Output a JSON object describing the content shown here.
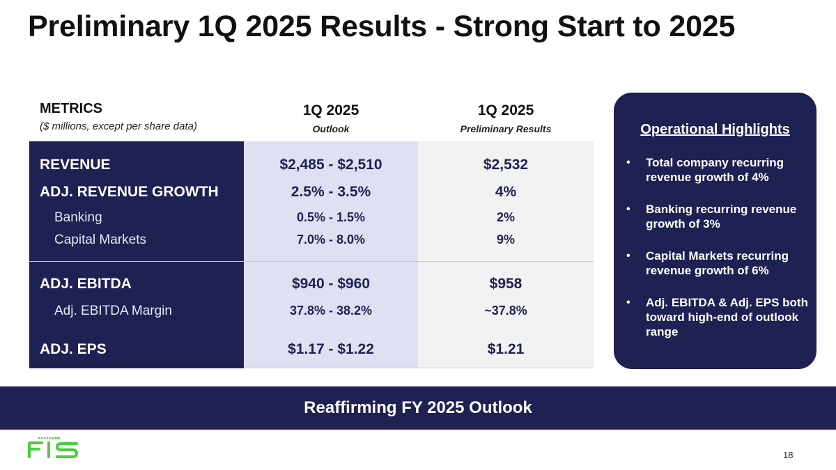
{
  "title": "Preliminary 1Q 2025 Results - Strong Start to 2025",
  "table": {
    "header": {
      "metrics": "METRICS",
      "metrics_sub": "($ millions, except per share data)",
      "col1_title": "1Q 2025",
      "col1_sub": "Outlook",
      "col2_title": "1Q 2025",
      "col2_sub": "Preliminary Results"
    },
    "rows": [
      {
        "label": "REVENUE",
        "outlook": "$2,485 - $2,510",
        "result": "$2,532"
      },
      {
        "label": "ADJ. REVENUE GROWTH",
        "outlook": "2.5% - 3.5%",
        "result": "4%"
      },
      {
        "label": "Banking",
        "outlook": "0.5% - 1.5%",
        "result": "2%"
      },
      {
        "label": "Capital Markets",
        "outlook": "7.0% - 8.0%",
        "result": "9%"
      },
      {
        "label": "ADJ. EBITDA",
        "outlook": "$940 - $960",
        "result": "$958"
      },
      {
        "label": "Adj. EBITDA Margin",
        "outlook": "37.8% - 38.2%",
        "result": "~37.8%"
      },
      {
        "label": "ADJ. EPS",
        "outlook": "$1.17 - $1.22",
        "result": "$1.21"
      }
    ]
  },
  "highlights": {
    "title": "Operational Highlights",
    "items": [
      "Total company recurring revenue growth of 4%",
      "Banking recurring revenue growth of 3%",
      "Capital Markets recurring revenue growth of 6%",
      "Adj. EBITDA & Adj. EPS both toward high-end of outlook range"
    ]
  },
  "banner": "Reaffirming FY 2025 Outlook",
  "logo_text": "FIS",
  "page_number": "18",
  "colors": {
    "navy": "#1e2152",
    "lavender": "#dfe0f2",
    "brand_green": "#4bcd3e"
  }
}
